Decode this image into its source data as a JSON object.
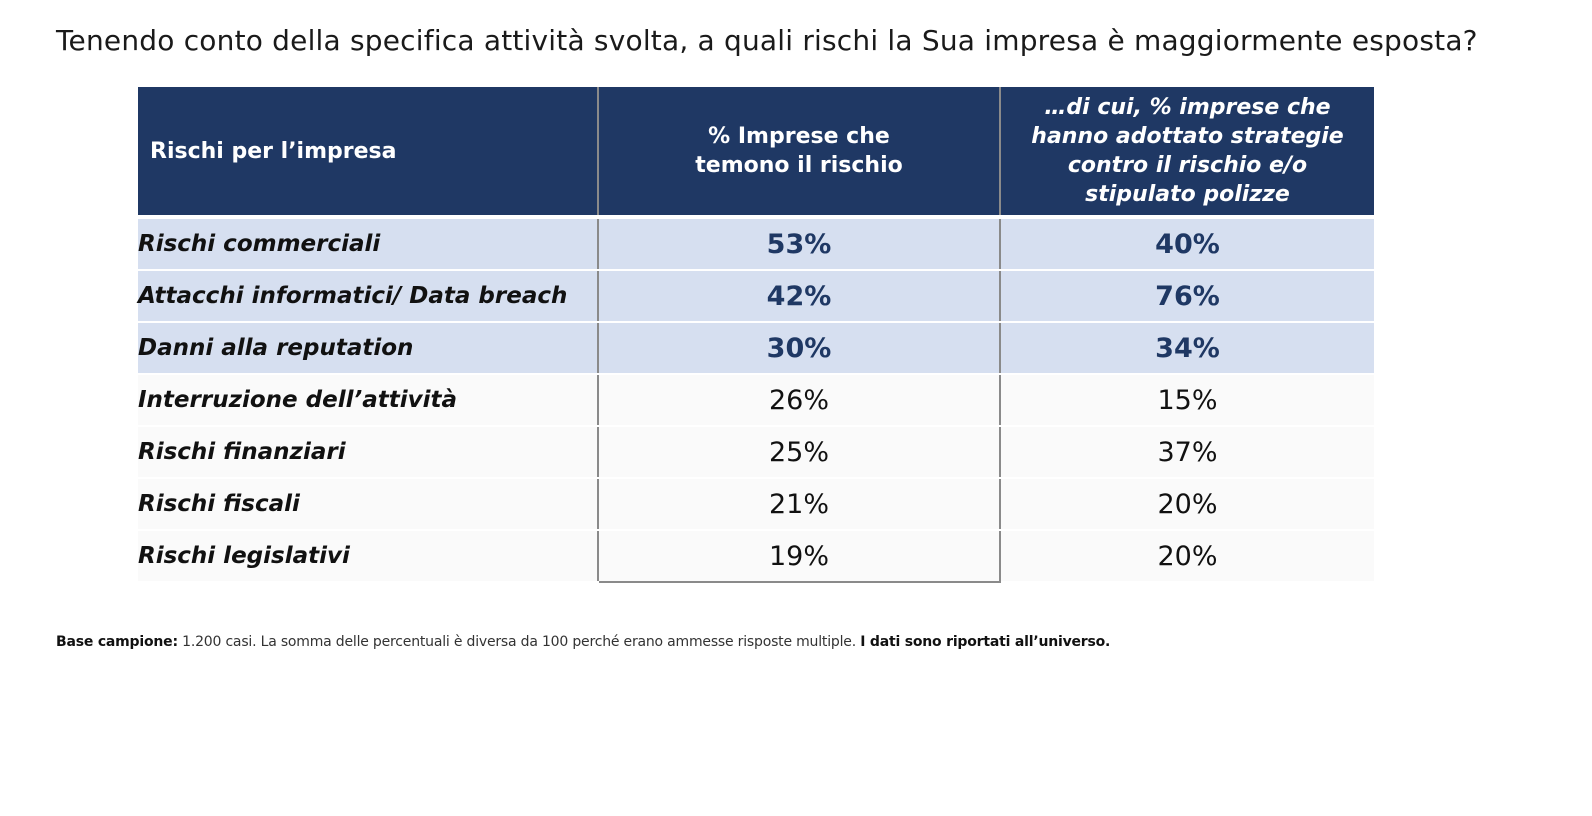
{
  "title": "Tenendo conto della specifica attività svolta, a quali rischi la Sua impresa è maggiormente esposta?",
  "table": {
    "headers": {
      "col1": "Rischi per l’impresa",
      "col2_lines": [
        "% Imprese che",
        "temono il rischio"
      ],
      "col3_lines": [
        "…di cui, % imprese che",
        "hanno adottato strategie",
        "contro il rischio  e/o",
        "stipulato polizze"
      ]
    },
    "rows": [
      {
        "label": "Rischi commerciali",
        "fear": "53%",
        "strategy": "40%"
      },
      {
        "label": "Attacchi informatici/ Data breach",
        "fear": "42%",
        "strategy": "76%"
      },
      {
        "label": "Danni alla reputation",
        "fear": "30%",
        "strategy": "34%"
      },
      {
        "label": "Interruzione dell’attività",
        "fear": "26%",
        "strategy": "15%"
      },
      {
        "label": "Rischi finanziari",
        "fear": "25%",
        "strategy": "37%"
      },
      {
        "label": "Rischi fiscali",
        "fear": "21%",
        "strategy": "20%"
      },
      {
        "label": "Rischi legislativi",
        "fear": "19%",
        "strategy": "20%"
      }
    ]
  },
  "footnote": {
    "label": "Base campione:",
    "text": " 1.200 casi. La somma delle percentuali è diversa da 100 perché erano ammesse risposte multiple. ",
    "emphasis": "I dati sono riportati all’universo."
  },
  "colors": {
    "header_bg": "#1f3864",
    "highlight_row_bg": "#d6dff0",
    "highlight_value": "#1f3864"
  }
}
